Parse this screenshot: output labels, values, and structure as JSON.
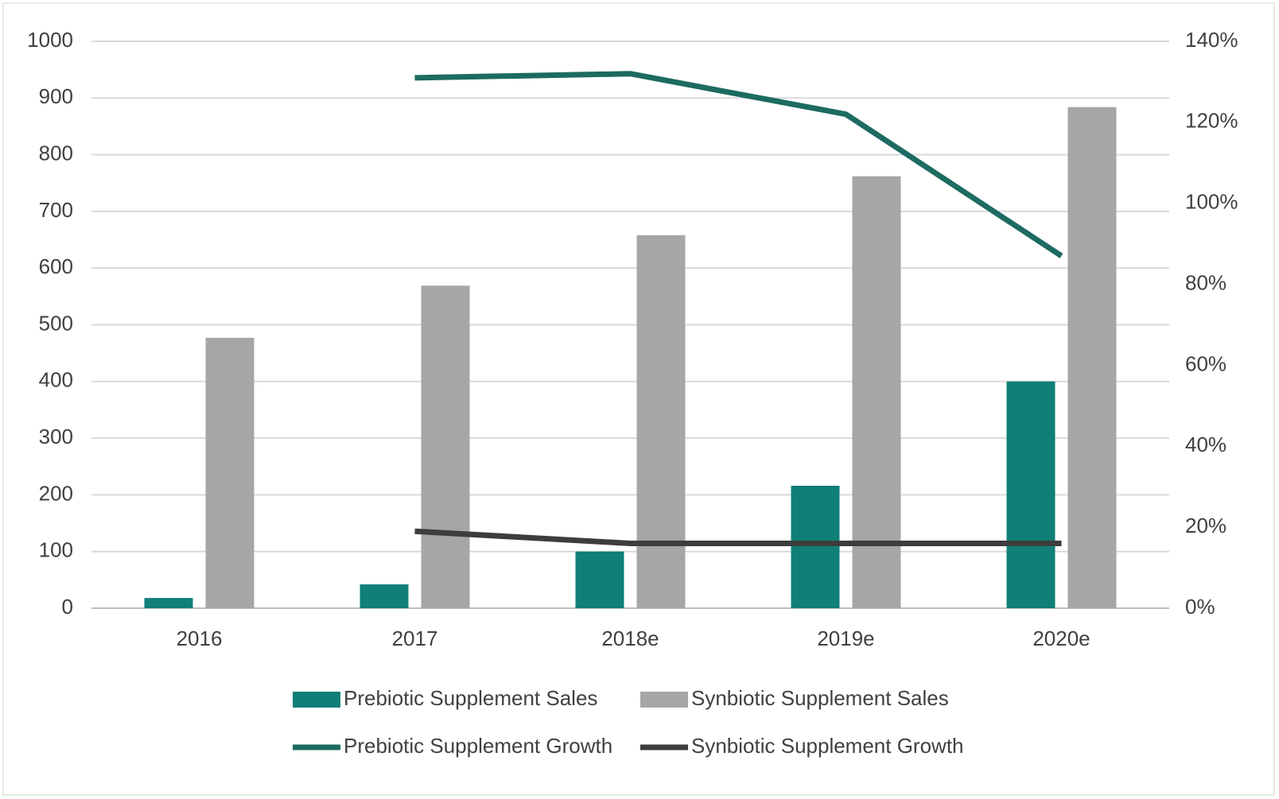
{
  "chart_data": {
    "type": "bar",
    "categories": [
      "2016",
      "2017",
      "2018e",
      "2019e",
      "2020e"
    ],
    "series": [
      {
        "name": "Prebiotic Supplement Sales",
        "type": "bar",
        "color": "#0f7f78",
        "values": [
          18,
          42,
          100,
          216,
          400
        ]
      },
      {
        "name": "Synbiotic Supplement Sales",
        "type": "bar",
        "color": "#a6a6a6",
        "values": [
          477,
          569,
          658,
          762,
          884
        ]
      },
      {
        "name": "Prebiotic Supplement Growth",
        "type": "line",
        "axis": "y2",
        "color": "#1d6b62",
        "values": [
          null,
          131,
          132,
          122,
          87
        ]
      },
      {
        "name": "Synbiotic Supplement Growth",
        "type": "line",
        "axis": "y2",
        "color": "#3d3d3d",
        "values": [
          null,
          19,
          16,
          16,
          16
        ]
      }
    ],
    "ylim": [
      0,
      1000
    ],
    "yticks": [
      0,
      100,
      200,
      300,
      400,
      500,
      600,
      700,
      800,
      900,
      1000
    ],
    "y2lim": [
      0,
      140
    ],
    "y2ticks": [
      {
        "value": 0,
        "label": "0%"
      },
      {
        "value": 20,
        "label": "20%"
      },
      {
        "value": 40,
        "label": "40%"
      },
      {
        "value": 60,
        "label": "60%"
      },
      {
        "value": 80,
        "label": "80%"
      },
      {
        "value": 100,
        "label": "100%"
      },
      {
        "value": 120,
        "label": "120%"
      },
      {
        "value": 140,
        "label": "140%"
      }
    ],
    "grid": true,
    "legend": "bottom"
  }
}
